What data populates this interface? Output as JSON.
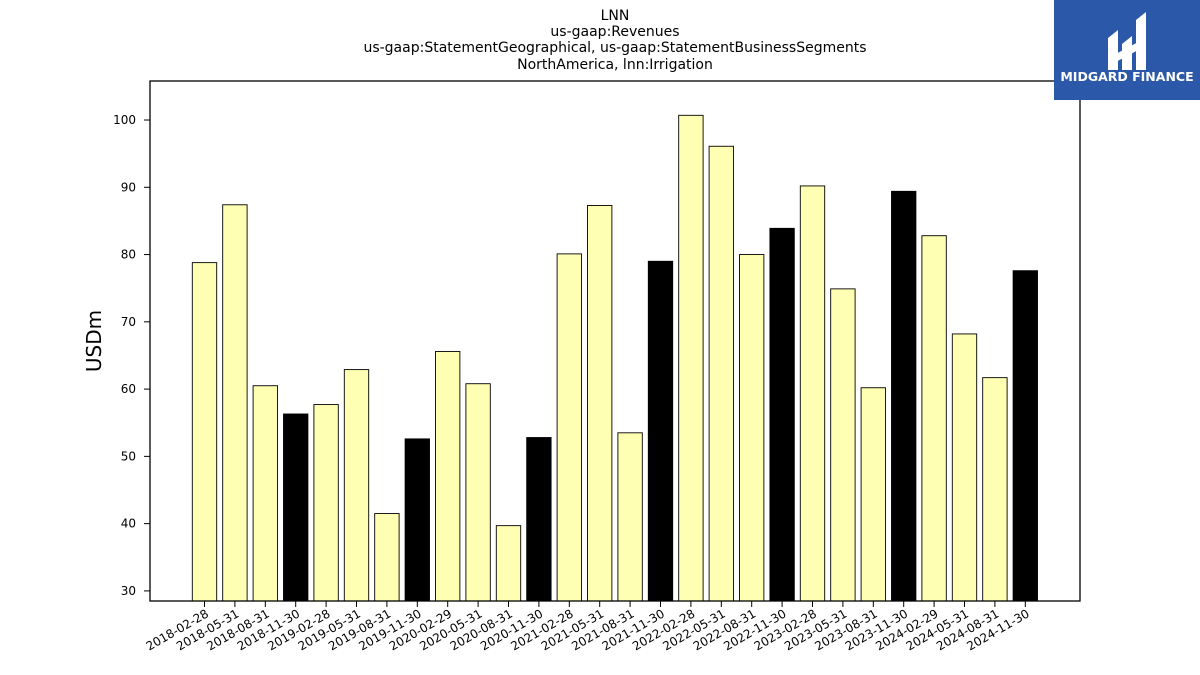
{
  "chart_data": {
    "type": "bar",
    "title_lines": [
      "LNN",
      "us-gaap:Revenues",
      "us-gaap:StatementGeographical, us-gaap:StatementBusinessSegments",
      "NorthAmerica, lnn:Irrigation"
    ],
    "xlabel": "",
    "ylabel": "USDm",
    "ylim": [
      28.5,
      105.8
    ],
    "yticks": [
      30,
      40,
      50,
      60,
      70,
      80,
      90,
      100
    ],
    "grid": false,
    "categories": [
      "2018-02-28",
      "2018-05-31",
      "2018-08-31",
      "2018-11-30",
      "2019-02-28",
      "2019-05-31",
      "2019-08-31",
      "2019-11-30",
      "2020-02-29",
      "2020-05-31",
      "2020-08-31",
      "2020-11-30",
      "2021-02-28",
      "2021-05-31",
      "2021-08-31",
      "2021-11-30",
      "2022-02-28",
      "2022-05-31",
      "2022-08-31",
      "2022-11-30",
      "2023-02-28",
      "2023-05-31",
      "2023-08-31",
      "2023-11-30",
      "2024-02-29",
      "2024-05-31",
      "2024-08-31",
      "2024-11-30"
    ],
    "values": [
      78.8,
      87.4,
      60.5,
      56.3,
      57.7,
      62.9,
      41.5,
      52.6,
      65.6,
      60.8,
      39.7,
      52.8,
      80.1,
      87.3,
      53.5,
      79.0,
      100.7,
      96.1,
      80.0,
      83.9,
      90.2,
      74.9,
      60.2,
      89.4,
      82.8,
      68.2,
      61.7,
      77.6
    ],
    "colors": {
      "quarter_bar": "#ffffb3",
      "fiscal_year_end_bar": "#000000",
      "bar_edge": "#000000"
    },
    "highlighted_categories": [
      "2018-11-30",
      "2019-11-30",
      "2020-11-30",
      "2021-11-30",
      "2022-11-30",
      "2023-11-30",
      "2024-11-30"
    ]
  },
  "logo": {
    "text": "MIDGARD FINANCE",
    "background": "#2b58a8"
  }
}
